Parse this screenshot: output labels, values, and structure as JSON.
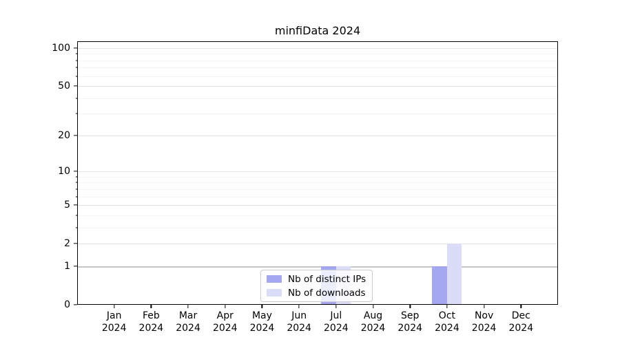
{
  "chart_data": {
    "type": "bar",
    "title": "minfiData 2024",
    "categories": [
      "Jan 2024",
      "Feb 2024",
      "Mar 2024",
      "Apr 2024",
      "May 2024",
      "Jun 2024",
      "Jul 2024",
      "Aug 2024",
      "Sep 2024",
      "Oct 2024",
      "Nov 2024",
      "Dec 2024"
    ],
    "x_tick_months": [
      "Jan",
      "Feb",
      "Mar",
      "Apr",
      "May",
      "Jun",
      "Jul",
      "Aug",
      "Sep",
      "Oct",
      "Nov",
      "Dec"
    ],
    "x_tick_year": "2024",
    "series": [
      {
        "name": "Nb of distinct IPs",
        "key": "distinct-ips",
        "color": "#a5a8f0",
        "values": [
          0,
          0,
          0,
          0,
          0,
          0,
          1,
          0,
          0,
          1,
          0,
          0
        ]
      },
      {
        "name": "Nb of downloads",
        "key": "downloads",
        "color": "#dadcf8",
        "values": [
          0,
          0,
          0,
          0,
          0,
          0,
          1,
          0,
          0,
          2,
          0,
          0
        ]
      }
    ],
    "xlabel": "",
    "ylabel": "",
    "y_scale": "log1p",
    "ylim": [
      0,
      113
    ],
    "y_major_ticks": [
      100,
      50,
      20,
      10,
      5,
      2,
      1,
      0
    ],
    "y_minor_ticks": [
      90,
      80,
      70,
      60,
      40,
      30,
      9,
      8,
      7,
      6,
      4,
      3
    ],
    "grid": "horizontal",
    "legend_position": "lower-center-inside",
    "colors": {
      "major_grid": "#e2e2e2",
      "minor_grid": "#f3f3f3",
      "unit_gridline": "#c6c6c6",
      "axis": "#000000",
      "background": "#ffffff"
    }
  }
}
